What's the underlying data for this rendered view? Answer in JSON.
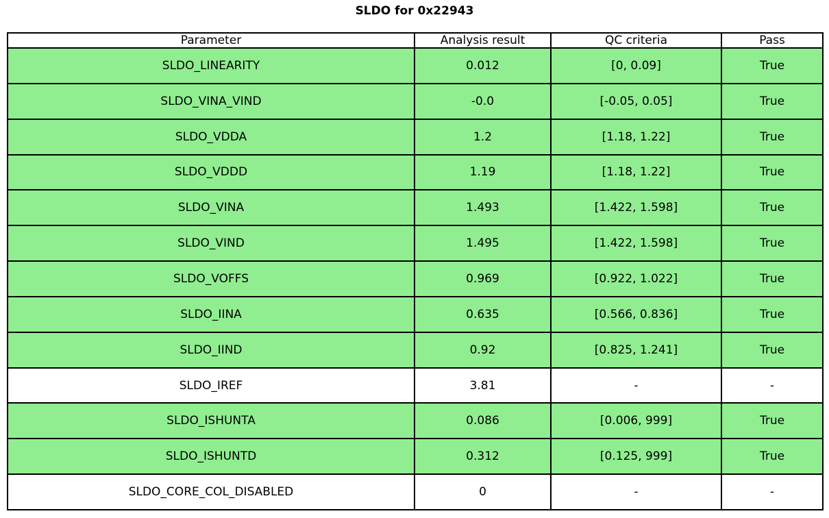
{
  "colors": {
    "pass_row": "#90EE90",
    "neutral_row": "#FFFFFF",
    "border": "#000000"
  },
  "chart_data": {
    "type": "table",
    "title": "SLDO for 0x22943",
    "columns": [
      "Parameter",
      "Analysis result",
      "QC criteria",
      "Pass"
    ],
    "rows": [
      {
        "parameter": "SLDO_LINEARITY",
        "result": "0.012",
        "criteria": "[0, 0.09]",
        "pass": "True",
        "highlight": true
      },
      {
        "parameter": "SLDO_VINA_VIND",
        "result": "-0.0",
        "criteria": "[-0.05, 0.05]",
        "pass": "True",
        "highlight": true
      },
      {
        "parameter": "SLDO_VDDA",
        "result": "1.2",
        "criteria": "[1.18, 1.22]",
        "pass": "True",
        "highlight": true
      },
      {
        "parameter": "SLDO_VDDD",
        "result": "1.19",
        "criteria": "[1.18, 1.22]",
        "pass": "True",
        "highlight": true
      },
      {
        "parameter": "SLDO_VINA",
        "result": "1.493",
        "criteria": "[1.422, 1.598]",
        "pass": "True",
        "highlight": true
      },
      {
        "parameter": "SLDO_VIND",
        "result": "1.495",
        "criteria": "[1.422, 1.598]",
        "pass": "True",
        "highlight": true
      },
      {
        "parameter": "SLDO_VOFFS",
        "result": "0.969",
        "criteria": "[0.922, 1.022]",
        "pass": "True",
        "highlight": true
      },
      {
        "parameter": "SLDO_IINA",
        "result": "0.635",
        "criteria": "[0.566, 0.836]",
        "pass": "True",
        "highlight": true
      },
      {
        "parameter": "SLDO_IIND",
        "result": "0.92",
        "criteria": "[0.825, 1.241]",
        "pass": "True",
        "highlight": true
      },
      {
        "parameter": "SLDO_IREF",
        "result": "3.81",
        "criteria": "-",
        "pass": "-",
        "highlight": false
      },
      {
        "parameter": "SLDO_ISHUNTA",
        "result": "0.086",
        "criteria": "[0.006, 999]",
        "pass": "True",
        "highlight": true
      },
      {
        "parameter": "SLDO_ISHUNTD",
        "result": "0.312",
        "criteria": "[0.125, 999]",
        "pass": "True",
        "highlight": true
      },
      {
        "parameter": "SLDO_CORE_COL_DISABLED",
        "result": "0",
        "criteria": "-",
        "pass": "-",
        "highlight": false
      }
    ]
  }
}
